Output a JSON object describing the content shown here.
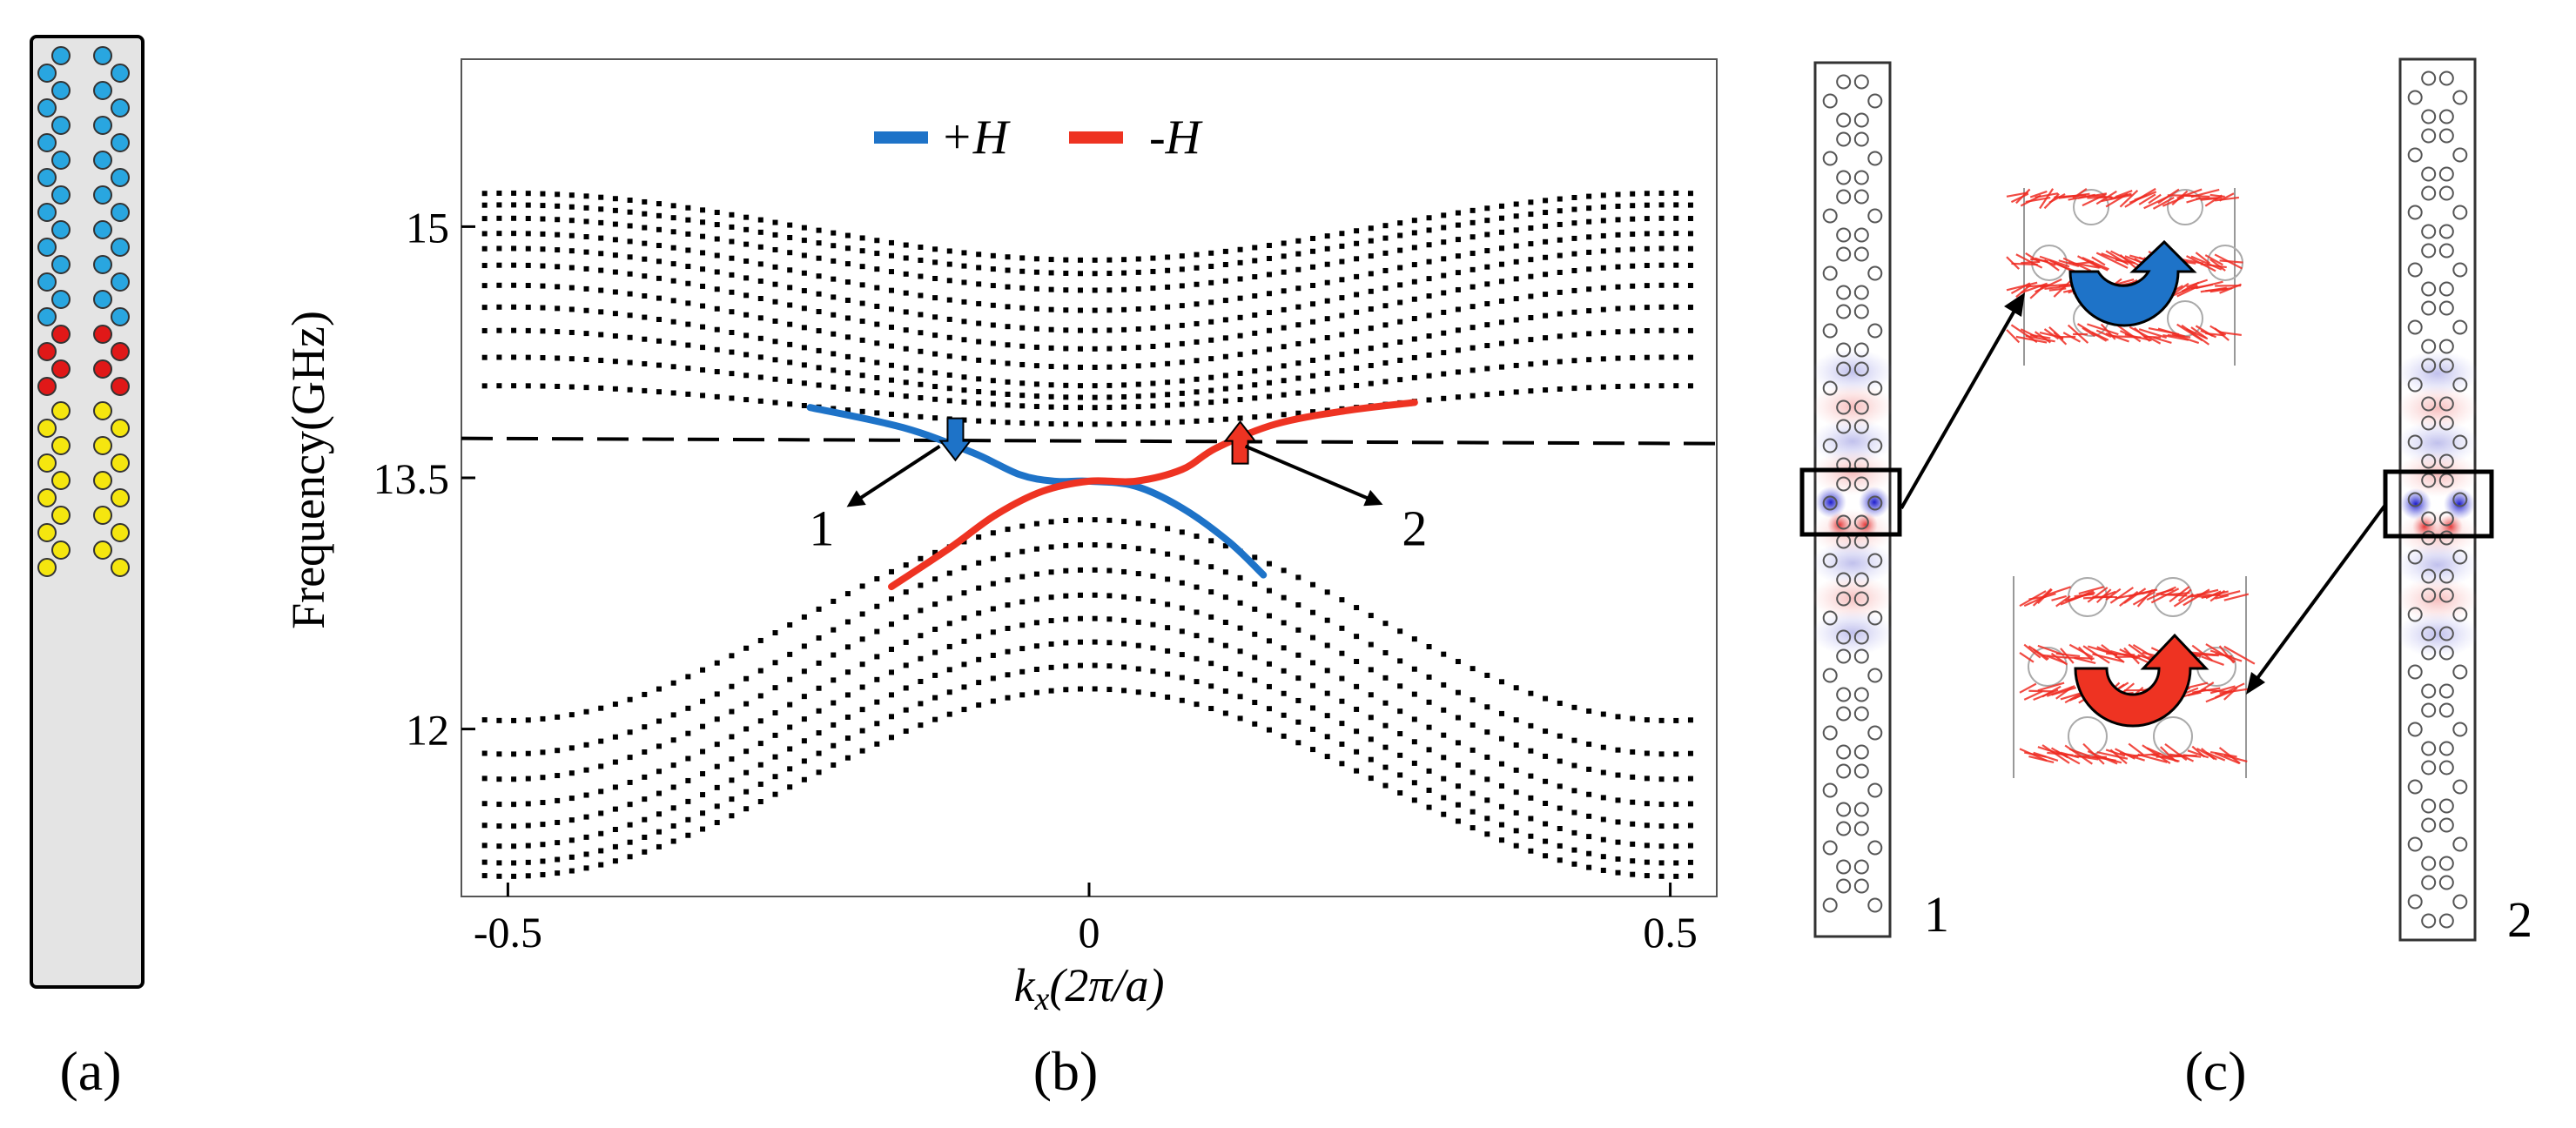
{
  "panel_labels": {
    "a": "(a)",
    "b": "(b)",
    "c": "(c)"
  },
  "chart_data": {
    "type": "scatter",
    "title": "",
    "xlabel": "k_x(2π/a)",
    "xlabel_main": "k",
    "xlabel_sub": "x",
    "xlabel_rest": "(2π/a)",
    "ylabel": "Frequency(GHz)",
    "xlim": [
      -0.54,
      0.54
    ],
    "ylim": [
      11.0,
      16.0
    ],
    "x_ticks": [
      -0.5,
      0,
      0.5
    ],
    "x_tick_labels": [
      "-0.5",
      "0",
      "0.5"
    ],
    "y_ticks": [
      12,
      13.5,
      15
    ],
    "y_tick_labels": [
      "12",
      "13.5",
      "15"
    ],
    "legend": [
      {
        "label": "+H",
        "color": "#1e73c8"
      },
      {
        "label": "-H",
        "color": "#ee3322"
      }
    ],
    "reference_frequency": 13.72,
    "bulk_bands_upper": [
      {
        "edge": 15.2,
        "center": 14.8
      },
      {
        "edge": 15.13,
        "center": 14.72
      },
      {
        "edge": 15.05,
        "center": 14.62
      },
      {
        "edge": 14.96,
        "center": 14.5
      },
      {
        "edge": 14.87,
        "center": 14.38
      },
      {
        "edge": 14.77,
        "center": 14.27
      },
      {
        "edge": 14.65,
        "center": 14.16
      },
      {
        "edge": 14.52,
        "center": 14.05
      },
      {
        "edge": 14.38,
        "center": 13.98
      },
      {
        "edge": 14.22,
        "center": 13.92
      },
      {
        "edge": 14.05,
        "center": 13.82
      }
    ],
    "bulk_bands_lower": [
      {
        "edge": 12.05,
        "center": 13.25
      },
      {
        "edge": 11.85,
        "center": 13.1
      },
      {
        "edge": 11.7,
        "center": 12.95
      },
      {
        "edge": 11.55,
        "center": 12.8
      },
      {
        "edge": 11.42,
        "center": 12.66
      },
      {
        "edge": 11.3,
        "center": 12.52
      },
      {
        "edge": 11.2,
        "center": 12.38
      },
      {
        "edge": 11.12,
        "center": 12.24
      }
    ],
    "series": [
      {
        "name": "+H",
        "color": "#1e73c8",
        "x": [
          -0.24,
          -0.16,
          -0.1,
          -0.06,
          -0.03,
          0.0,
          0.04,
          0.08,
          0.12,
          0.15
        ],
        "y": [
          13.92,
          13.8,
          13.65,
          13.52,
          13.48,
          13.48,
          13.45,
          13.32,
          13.12,
          12.92
        ]
      },
      {
        "name": "-H",
        "color": "#ee3322",
        "x": [
          -0.17,
          -0.12,
          -0.08,
          -0.04,
          0.0,
          0.04,
          0.08,
          0.11,
          0.16,
          0.22,
          0.28
        ],
        "y": [
          12.85,
          13.08,
          13.28,
          13.42,
          13.48,
          13.48,
          13.55,
          13.68,
          13.82,
          13.9,
          13.95
        ]
      }
    ],
    "point_labels": [
      {
        "label": "1",
        "x": -0.23,
        "y": 13.15,
        "target_x": -0.115,
        "target_y": 13.72
      },
      {
        "label": "2",
        "x": 0.28,
        "y": 13.15,
        "target_x": 0.13,
        "target_y": 13.72
      }
    ],
    "arrows": [
      {
        "x": -0.115,
        "y": 13.72,
        "color": "#1e73c8",
        "direction": "down"
      },
      {
        "x": 0.13,
        "y": 13.72,
        "color": "#ee3322",
        "direction": "up"
      }
    ]
  },
  "panel_a": {
    "columns": [
      {
        "name": "cyan",
        "color": "#29a6e0",
        "count": 8
      },
      {
        "name": "red",
        "color": "#e01818",
        "count": 2
      },
      {
        "name": "yellow",
        "color": "#f5e60f",
        "count": 5
      }
    ]
  },
  "panel_c": {
    "labels": [
      "1",
      "2"
    ],
    "top_circulation_color": "#1e73c8",
    "bottom_circulation_color": "#ee3322"
  }
}
